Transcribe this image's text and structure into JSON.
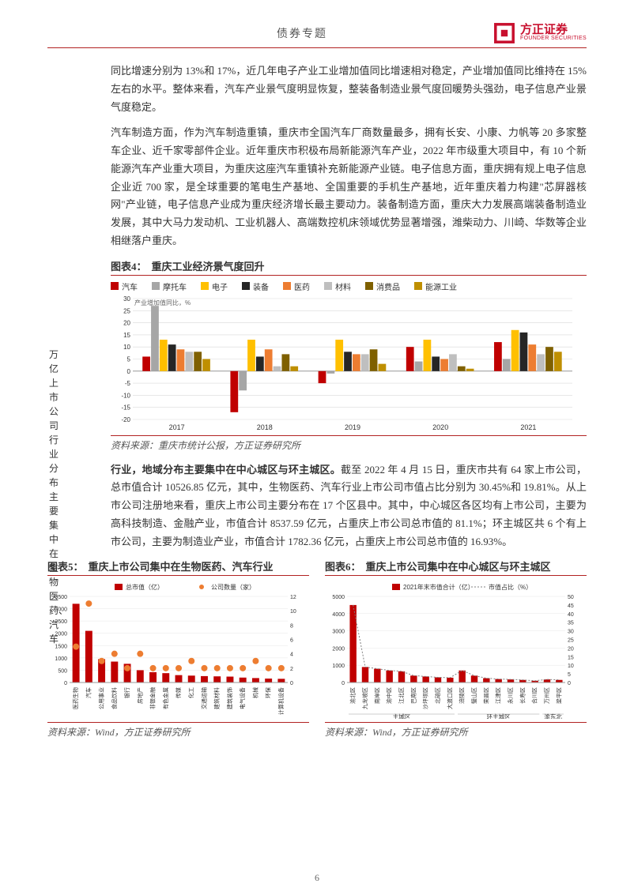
{
  "header": {
    "title": "债券专题",
    "logo_cn": "方正证券",
    "logo_en": "FOUNDER SECURITIES",
    "logo_color": "#c8102e"
  },
  "paragraphs": {
    "p1": "同比增速分别为 13%和 17%，近几年电子产业工业增加值同比增速相对稳定，产业增加值同比维持在 15%左右的水平。整体来看，汽车产业景气度明显恢复，整装备制造业景气度回暖势头强劲，电子信息产业景气度稳定。",
    "p2": "汽车制造方面，作为汽车制造重镇，重庆市全国汽车厂商数量最多，拥有长安、小康、力帆等 20 多家整车企业、近千家零部件企业。近年重庆市积极布局新能源汽车产业，2022 年市级重大项目中，有 10 个新能源汽车产业重大项目，为重庆这座汽车重镇补充新能源产业链。电子信息方面，重庆拥有规上电子信息企业近 700 家，是全球重要的笔电生产基地、全国重要的手机生产基地，近年重庆着力构建\"芯屏器核网\"产业链，电子信息产业成为重庆经济增长最主要动力。装备制造方面，重庆大力发展高端装备制造业发展，其中大马力发动机、工业机器人、高端数控机床领域优势显著增强，潍柴动力、川崎、华数等企业相继落户重庆。",
    "p3_prefix": "行业，地域分布主要集中在中心城区与环主城区。",
    "p3_rest": "截至 2022 年 4 月 15 日，重庆市共有 64 家上市公司，总市值合计 10526.85 亿元，其中，生物医药、汽车行业上市公司市值占比分别为 30.45%和 19.81%。从上市公司注册地来看，重庆上市公司主要分布在 17 个区县中。其中，中心城区各区均有上市公司，主要为高科技制造、金融产业，市值合计 8537.59 亿元，占重庆上市公司总市值的 81.1%；环主城区共 6 个有上市公司，主要为制造业产业，市值合计 1782.36 亿元，占重庆上市公司总市值的 16.93%。"
  },
  "left_vertical": "万亿上市公司行业分布主要集中在生物医药、汽车",
  "fig4": {
    "label": "图表4：",
    "title": "重庆工业经济景气度回升",
    "source": "资料来源：重庆市统计公报，方正证券研究所",
    "type": "grouped-bar",
    "ylabel": "产业增加值同比，%",
    "categories": [
      "2017",
      "2018",
      "2019",
      "2020",
      "2021"
    ],
    "series": [
      {
        "name": "汽车",
        "color": "#c00000"
      },
      {
        "name": "摩托车",
        "color": "#a6a6a6"
      },
      {
        "name": "电子",
        "color": "#ffc000"
      },
      {
        "name": "装备",
        "color": "#262626"
      },
      {
        "name": "医药",
        "color": "#ed7d31"
      },
      {
        "name": "材料",
        "color": "#bfbfbf"
      },
      {
        "name": "消费品",
        "color": "#7f6000"
      },
      {
        "name": "能源工业",
        "color": "#bf8f00"
      }
    ],
    "values": [
      [
        6,
        27,
        13,
        11,
        9,
        8,
        8,
        5
      ],
      [
        -17,
        -8,
        13,
        6,
        9,
        2,
        7,
        2
      ],
      [
        -5,
        -1,
        13,
        8,
        7,
        7,
        9,
        3
      ],
      [
        10,
        4,
        13,
        6,
        5,
        7,
        2,
        1
      ],
      [
        12,
        5,
        17,
        16,
        11,
        7,
        10,
        8
      ]
    ],
    "ylim": [
      -20,
      30
    ],
    "ytick_step": 5,
    "background_color": "#ffffff",
    "grid_color": "#d9d9d9",
    "label_fontsize": 10
  },
  "fig5": {
    "label": "图表5：",
    "title": "重庆上市公司集中在生物医药、汽车行业",
    "source": "资料来源：Wind，方正证券研究所",
    "type": "bar-line-dual-axis",
    "categories": [
      "医药生物",
      "汽车",
      "公用事业",
      "食品饮料",
      "银行",
      "房地产",
      "非银金融",
      "有色金属",
      "传媒",
      "化工",
      "交通运输",
      "建筑材料",
      "建筑装饰",
      "电气设备",
      "机械",
      "环保",
      "计算机设备"
    ],
    "bar": {
      "name": "总市值（亿）",
      "color": "#c00000",
      "values": [
        3200,
        2100,
        950,
        850,
        760,
        500,
        420,
        380,
        300,
        280,
        260,
        250,
        240,
        200,
        180,
        160,
        150
      ]
    },
    "line": {
      "name": "公司数量（家）",
      "color": "#ed7d31",
      "values": [
        5,
        11,
        3,
        4,
        2,
        4,
        2,
        2,
        2,
        3,
        2,
        2,
        2,
        2,
        3,
        2,
        2
      ],
      "marker": "circle",
      "marker_size": 4
    },
    "yleft": {
      "lim": [
        0,
        3500
      ],
      "step": 500
    },
    "yright": {
      "lim": [
        0,
        12
      ],
      "step": 2
    },
    "label_fontsize": 9,
    "background_color": "#ffffff",
    "grid_color": "#e7e7e7"
  },
  "fig6": {
    "label": "图表6：",
    "title": "重庆上市公司集中在中心城区与环主城区",
    "source": "资料来源：Wind，方正证券研究所",
    "type": "bar-line-dual-axis",
    "group_labels": [
      "主城区",
      "环主城区",
      "渝东北"
    ],
    "categories": [
      "渝北区",
      "九龙坡区",
      "南岸区",
      "渝中区",
      "江北区",
      "巴南区",
      "沙坪坝区",
      "北碚区",
      "大渡口区",
      "涪陵区",
      "璧山区",
      "荣昌区",
      "江津区",
      "永川区",
      "长寿区",
      "合川区",
      "万州区",
      "梁平区"
    ],
    "bar": {
      "name": "2021年末市值合计（亿）",
      "color": "#c00000",
      "values": [
        4500,
        900,
        800,
        700,
        650,
        400,
        350,
        300,
        280,
        700,
        400,
        250,
        200,
        180,
        150,
        100,
        180,
        150
      ]
    },
    "line": {
      "name": "市值占比（%）",
      "color": "#808080",
      "values": [
        45,
        9,
        8,
        7,
        6.5,
        4,
        3.5,
        3,
        2.8,
        7,
        4,
        2.5,
        2,
        1.8,
        1.5,
        1,
        1.8,
        1.5
      ],
      "dash": "2,2",
      "line_width": 1
    },
    "yleft": {
      "lim": [
        0,
        5000
      ],
      "step": 1000
    },
    "yright": {
      "lim": [
        0,
        50
      ],
      "step": 5
    },
    "label_fontsize": 9,
    "background_color": "#ffffff",
    "grid_color": "#e7e7e7"
  },
  "page_number": "6"
}
